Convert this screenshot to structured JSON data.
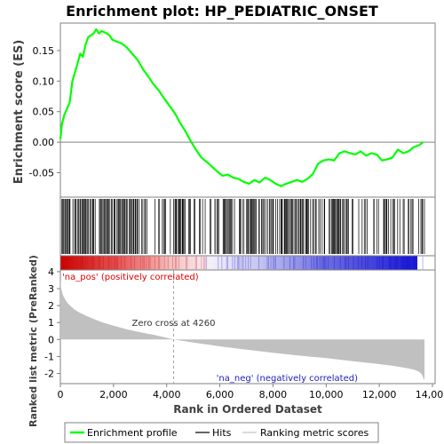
{
  "chart_data": {
    "type": "line",
    "title": "Enrichment plot: HP_PEDIATRIC_ONSET",
    "xlabel": "Rank in Ordered Dataset",
    "x_ticks": [
      0,
      2000,
      4000,
      6000,
      8000,
      10000,
      12000,
      14000
    ],
    "x_tick_labels": [
      "0",
      "2,000",
      "4,000",
      "6,000",
      "8,000",
      "10,000",
      "12,000",
      "14,000"
    ],
    "xlim": [
      0,
      14100
    ],
    "n_genes": 13700,
    "es_panel": {
      "ylabel": "Enrichment score (ES)",
      "ylim": [
        -0.09,
        0.195
      ],
      "y_ticks": [
        -0.05,
        0.0,
        0.05,
        0.1,
        0.15
      ],
      "y_tick_labels": [
        "-0.05",
        "0.00",
        "0.05",
        "0.10",
        "0.15"
      ],
      "series": [
        {
          "name": "Enrichment profile",
          "color": "#00ff00",
          "x": [
            0,
            60,
            150,
            250,
            350,
            450,
            550,
            650,
            750,
            850,
            950,
            1050,
            1150,
            1250,
            1350,
            1450,
            1550,
            1650,
            1750,
            1850,
            1950,
            2100,
            2300,
            2500,
            2700,
            2900,
            3100,
            3300,
            3500,
            3700,
            3900,
            4100,
            4300,
            4500,
            4700,
            4900,
            5100,
            5300,
            5500,
            5700,
            5900,
            6100,
            6300,
            6500,
            6700,
            6900,
            7100,
            7300,
            7500,
            7700,
            7900,
            8100,
            8300,
            8500,
            8700,
            8900,
            9100,
            9300,
            9500,
            9700,
            9900,
            10100,
            10300,
            10500,
            10700,
            10900,
            11100,
            11300,
            11500,
            11700,
            11900,
            12100,
            12300,
            12500,
            12700,
            12900,
            13100,
            13300,
            13500,
            13650
          ],
          "y": [
            0.005,
            0.03,
            0.045,
            0.055,
            0.065,
            0.1,
            0.115,
            0.13,
            0.145,
            0.14,
            0.16,
            0.172,
            0.175,
            0.178,
            0.185,
            0.178,
            0.182,
            0.18,
            0.178,
            0.175,
            0.168,
            0.165,
            0.162,
            0.155,
            0.145,
            0.135,
            0.12,
            0.108,
            0.095,
            0.085,
            0.072,
            0.06,
            0.048,
            0.032,
            0.018,
            0.002,
            -0.012,
            -0.025,
            -0.032,
            -0.04,
            -0.048,
            -0.055,
            -0.053,
            -0.058,
            -0.06,
            -0.065,
            -0.068,
            -0.062,
            -0.066,
            -0.058,
            -0.062,
            -0.068,
            -0.072,
            -0.068,
            -0.065,
            -0.062,
            -0.065,
            -0.06,
            -0.052,
            -0.035,
            -0.03,
            -0.028,
            -0.03,
            -0.018,
            -0.015,
            -0.018,
            -0.02,
            -0.015,
            -0.022,
            -0.018,
            -0.02,
            -0.03,
            -0.028,
            -0.025,
            -0.012,
            -0.018,
            -0.015,
            -0.008,
            -0.005,
            0.0
          ]
        }
      ]
    },
    "hits_panel": {
      "legend_name": "Hits",
      "color": "#000000"
    },
    "heatmap_bar": {
      "colors": [
        "#d40000",
        "#ffffff",
        "#0000ff"
      ]
    },
    "metric_panel": {
      "ylabel": "Ranked list metric (PreRanked)",
      "ylim": [
        -2.6,
        4.1
      ],
      "y_ticks": [
        -2,
        -1,
        0,
        1,
        2,
        3,
        4
      ],
      "y_tick_labels": [
        "-2",
        "-1",
        "0",
        "1",
        "2",
        "3",
        "4"
      ],
      "series": [
        {
          "name": "Ranking metric scores",
          "color": "#c0c0c0",
          "x": [
            0,
            30,
            100,
            200,
            300,
            500,
            700,
            1000,
            1300,
            1600,
            2000,
            2500,
            3000,
            3500,
            4000,
            4260,
            5000,
            6000,
            7000,
            8000,
            9000,
            10000,
            11000,
            12000,
            12500,
            13000,
            13300,
            13500,
            13600,
            13700
          ],
          "y": [
            3.6,
            3.0,
            2.6,
            2.3,
            2.1,
            1.8,
            1.6,
            1.38,
            1.18,
            1.0,
            0.82,
            0.6,
            0.43,
            0.28,
            0.1,
            0.0,
            -0.18,
            -0.4,
            -0.6,
            -0.78,
            -0.95,
            -1.1,
            -1.28,
            -1.45,
            -1.55,
            -1.68,
            -1.78,
            -1.9,
            -2.05,
            -2.4
          ]
        }
      ],
      "zero_cross_label": "Zero cross at 4260",
      "zero_cross_x": 4260,
      "pos_label": "'na_pos' (positively correlated)",
      "neg_label": "'na_neg' (negatively correlated)",
      "pos_color": "#e00000",
      "neg_color": "#2020c0"
    },
    "legend": {
      "placement": "bottom",
      "items": [
        "Enrichment profile",
        "Hits",
        "Ranking metric scores"
      ]
    }
  }
}
